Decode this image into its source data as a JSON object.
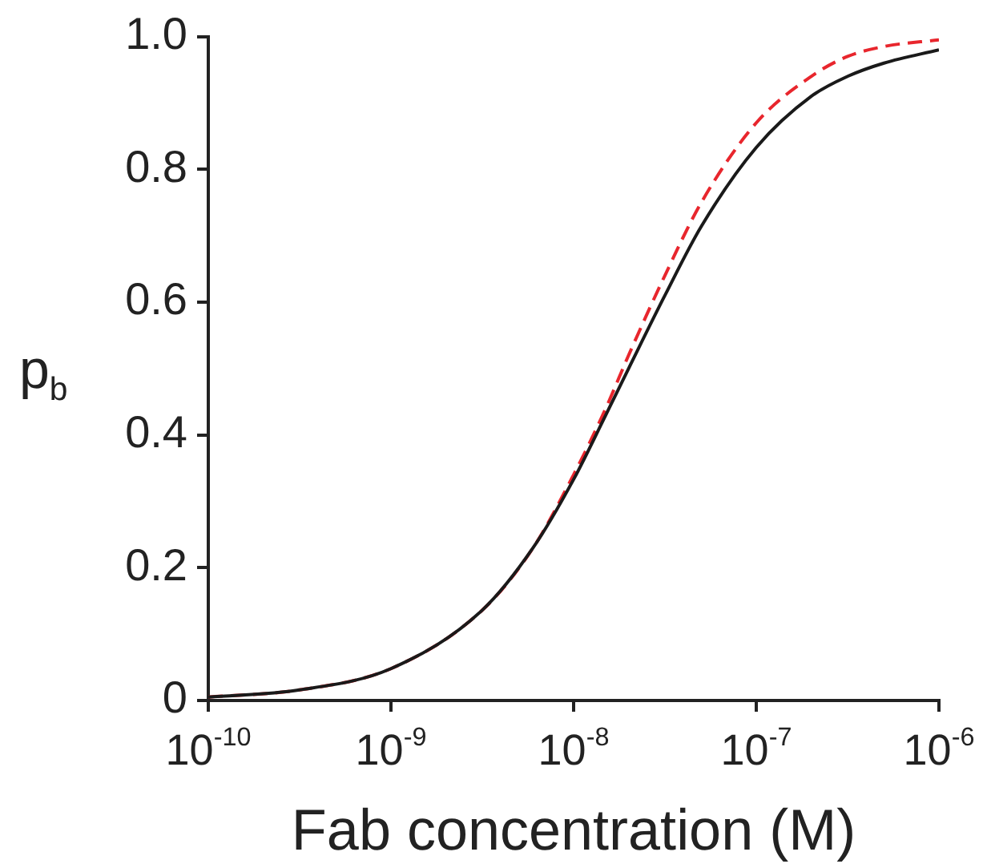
{
  "chart_data": {
    "type": "line",
    "xlabel": "Fab concentration (M)",
    "ylabel": "p$_{b}$",
    "log": "x",
    "xlim": [
      1e-10,
      1e-06
    ],
    "ylim": [
      0,
      1
    ],
    "xticks": [
      {
        "value": 1e-10,
        "label": "10$^{-10}$"
      },
      {
        "value": 1e-09,
        "label": "10$^{-9}$"
      },
      {
        "value": 1e-08,
        "label": "10$^{-8}$"
      },
      {
        "value": 1e-07,
        "label": "10$^{-7}$"
      },
      {
        "value": 1e-06,
        "label": "10$^{-6}$"
      }
    ],
    "yticks": [
      {
        "value": 0,
        "label": "0"
      },
      0.2,
      0.4,
      0.6,
      0.8,
      {
        "value": 1,
        "label": "1.0"
      }
    ],
    "grid": false,
    "legend": false,
    "marker": "none",
    "series": [
      {
        "color": "#1a1a1a",
        "line_style": "solid",
        "x": [
          1e-10,
          3.16e-10,
          1e-09,
          3.16e-09,
          6e-09,
          1e-08,
          1.5e-08,
          2e-08,
          3.16e-08,
          5e-08,
          1e-07,
          2e-07,
          3.16e-07,
          5e-07,
          1e-06
        ],
        "values": [
          0.005,
          0.016,
          0.048,
          0.136,
          0.23,
          0.333,
          0.43,
          0.5,
          0.61,
          0.714,
          0.833,
          0.91,
          0.94,
          0.96,
          0.98
        ]
      },
      {
        "color": "#e8262d",
        "line_style": "dashed",
        "x": [
          1e-10,
          3.16e-10,
          1e-09,
          3.16e-09,
          6e-09,
          1e-08,
          1.5e-08,
          2e-08,
          3.16e-08,
          5e-08,
          1e-07,
          2e-07,
          3.16e-07,
          5e-07,
          1e-06
        ],
        "values": [
          0.005,
          0.016,
          0.048,
          0.136,
          0.23,
          0.34,
          0.44,
          0.52,
          0.64,
          0.75,
          0.87,
          0.94,
          0.97,
          0.985,
          0.995
        ]
      }
    ]
  }
}
